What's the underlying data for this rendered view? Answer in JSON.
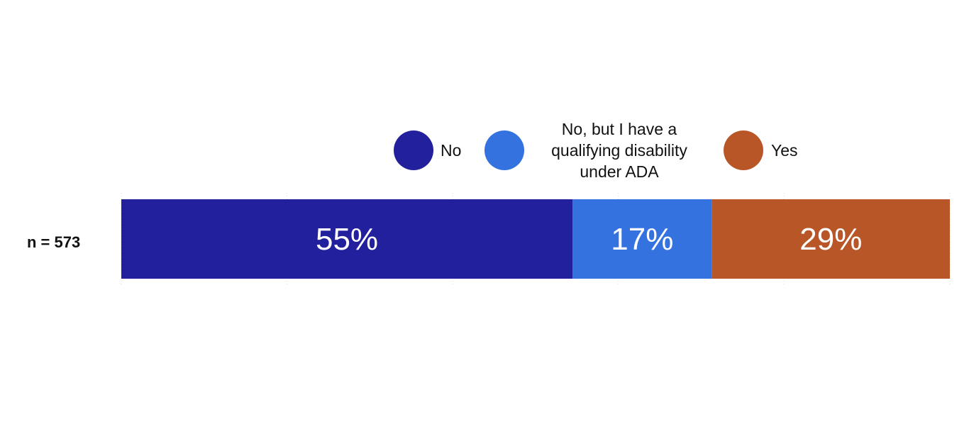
{
  "chart_data": {
    "type": "bar",
    "orientation": "horizontal-stacked",
    "categories": [
      "n = 573"
    ],
    "series": [
      {
        "name": "No",
        "values": [
          55
        ],
        "label": "55%",
        "color": "#22209c"
      },
      {
        "name": "No, but I have a qualifying disability under ADA",
        "values": [
          17
        ],
        "label": "17%",
        "color": "#3472e0"
      },
      {
        "name": "Yes",
        "values": [
          29
        ],
        "label": "29%",
        "color": "#b95628"
      }
    ],
    "xlim": [
      0,
      101
    ],
    "grid": true,
    "legend_position": "top-center"
  }
}
